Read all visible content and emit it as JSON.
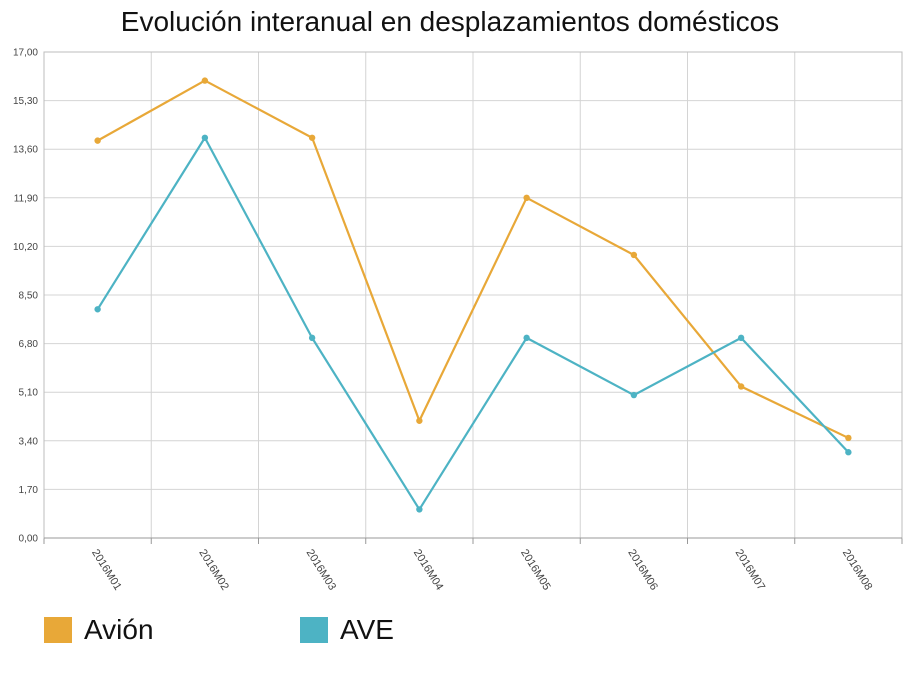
{
  "chart_data": {
    "type": "line",
    "title": "Evolución interanual en desplazamientos domésticos",
    "xlabel": "",
    "ylabel": "",
    "categories": [
      "2016M01",
      "2016M02",
      "2016M03",
      "2016M04",
      "2016M05",
      "2016M06",
      "2016M07",
      "2016M08"
    ],
    "series": [
      {
        "name": "Avión",
        "color": "#e8a838",
        "values": [
          13.9,
          16.0,
          14.0,
          4.1,
          11.9,
          9.9,
          5.3,
          3.5
        ]
      },
      {
        "name": "AVE",
        "color": "#4db3c4",
        "values": [
          8.0,
          14.0,
          7.0,
          1.0,
          7.0,
          5.0,
          7.0,
          3.0
        ]
      }
    ],
    "ylim": [
      0,
      17
    ],
    "yticks": [
      "0,00",
      "1,70",
      "3,40",
      "5,10",
      "6,80",
      "8,50",
      "10,20",
      "11,90",
      "13,60",
      "15,30",
      "17,00"
    ],
    "grid": true,
    "legend_position": "bottom-left"
  }
}
